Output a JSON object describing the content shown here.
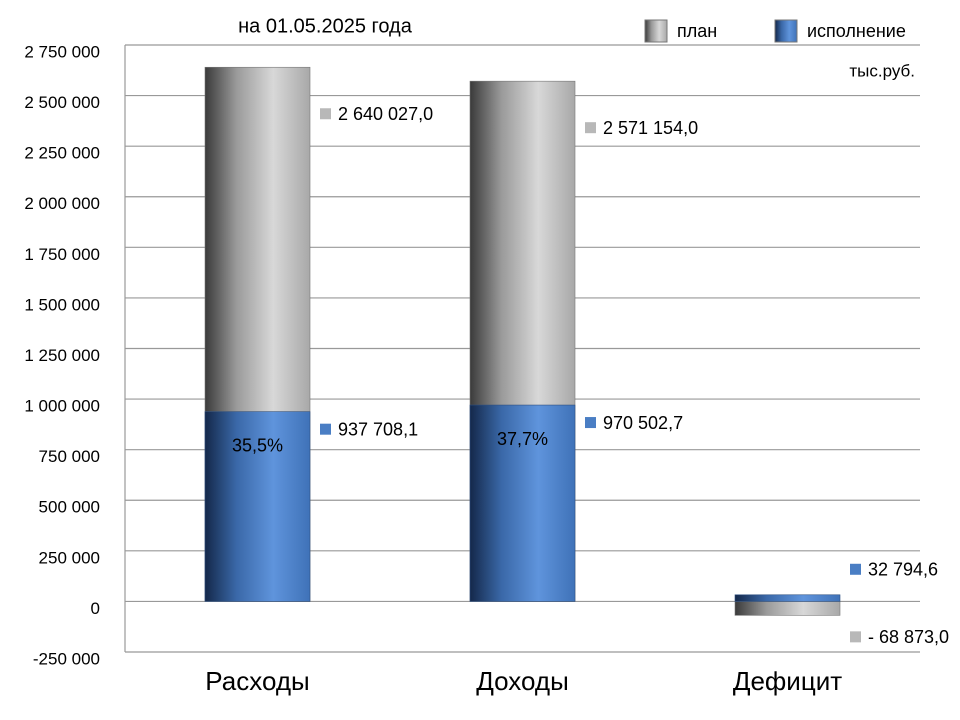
{
  "chart_data": {
    "type": "bar",
    "title": "на 01.05.2025 года",
    "unit_note": "тыс.руб.",
    "categories": [
      "Расходы",
      "Доходы",
      "Дефицит"
    ],
    "series": [
      {
        "name": "план",
        "color": "#b8b8b8",
        "values": [
          2640027.0,
          2571154.0,
          -68873.0
        ],
        "value_labels": [
          "2 640 027,0",
          "2 571 154,0",
          "- 68 873,0"
        ]
      },
      {
        "name": "исполнение",
        "color": "#4a7ec4",
        "values": [
          937708.1,
          970502.7,
          32794.6
        ],
        "value_labels": [
          "937 708,1",
          "970 502,7",
          "32 794,6"
        ],
        "percent_labels": [
          "35,5%",
          "37,7%",
          null
        ]
      }
    ],
    "ylim": [
      -250000,
      2750000
    ],
    "yticks": [
      {
        "value": -250000,
        "label": "-250 000"
      },
      0,
      {
        "value": 250000,
        "label": "250 000"
      },
      {
        "value": 500000,
        "label": "500 000"
      },
      {
        "value": 750000,
        "label": "750 000"
      },
      {
        "value": 1000000,
        "label": "1 000 000"
      },
      {
        "value": 1250000,
        "label": "1 250 000"
      },
      {
        "value": 1500000,
        "label": "1 500 000"
      },
      {
        "value": 1750000,
        "label": "1 750 000"
      },
      {
        "value": 2000000,
        "label": "2 000 000"
      },
      {
        "value": 2250000,
        "label": "2 250 000"
      },
      {
        "value": 2500000,
        "label": "2 500 000"
      },
      {
        "value": 2750000,
        "label": "2 750 000"
      }
    ],
    "grid": true,
    "legend": "top-right"
  }
}
